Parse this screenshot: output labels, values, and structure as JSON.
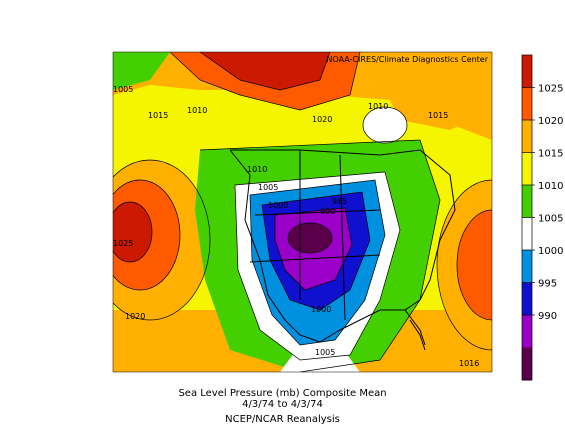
{
  "map": {
    "credit": "NOAA-CIRES/Climate Diagnostics Center",
    "contour_labels": [
      "1005",
      "1010",
      "1015",
      "1020",
      "1010",
      "1015",
      "1010",
      "1005",
      "1000",
      "985",
      "990",
      "1025",
      "1020",
      "1000",
      "1005",
      "1016",
      "101"
    ],
    "legend": {
      "labels": [
        "1025",
        "1020",
        "1015",
        "1010",
        "1005",
        "1000",
        "995",
        "990"
      ],
      "colors": [
        "#cc1a00",
        "#ff5a00",
        "#ffb000",
        "#f5f500",
        "#44d000",
        "#ffffff",
        "#0090e0",
        "#1010d0",
        "#9a00c8",
        "#5a004a"
      ]
    }
  },
  "caption": {
    "line1": "Sea Level Pressure (mb) Composite Mean",
    "line2": "4/3/74  to 4/3/74",
    "line3": "NCEP/NCAR Reanalysis"
  }
}
